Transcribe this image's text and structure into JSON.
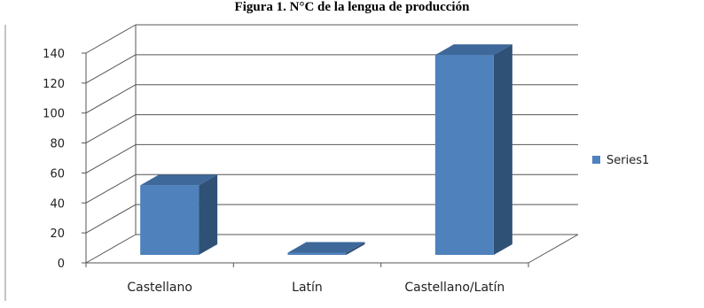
{
  "chart_data": {
    "type": "bar",
    "title": "Figura 1. N°C de la lengua de producción",
    "categories": [
      "Castellano",
      "Latín",
      "Castellano/Latín"
    ],
    "series": [
      {
        "name": "Series1",
        "values": [
          50,
          5,
          137
        ]
      }
    ],
    "ylim": [
      0,
      140
    ],
    "yticks": [
      0,
      20,
      40,
      60,
      80,
      100,
      120,
      140
    ],
    "grid": true,
    "three_d": true,
    "legend_position": "right",
    "colors": {
      "bar_front": "#4f81bd",
      "bar_top": "#3e6899",
      "bar_side": "#2f5176"
    }
  }
}
